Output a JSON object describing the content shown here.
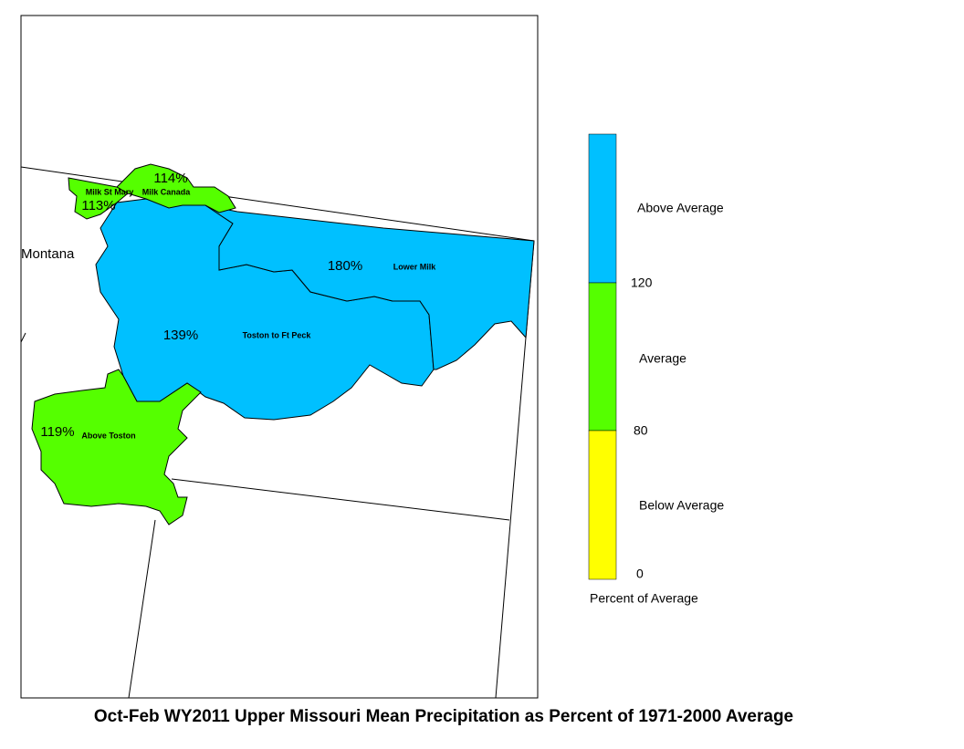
{
  "title": "Oct-Feb WY2011 Upper Missouri Mean Precipitation as Percent of 1971-2000 Average",
  "map": {
    "state_label": "Montana",
    "regions": [
      {
        "name": "Toston to Ft Peck",
        "percent": "139%",
        "color": "#00c0ff"
      },
      {
        "name": "Lower Milk",
        "percent": "180%",
        "color": "#00c0ff"
      },
      {
        "name": "Milk Canada",
        "percent": "114%",
        "color": "#55ff00"
      },
      {
        "name": "Milk St Mary",
        "percent": "113%",
        "color": "#55ff00"
      },
      {
        "name": "Above Toston",
        "percent": "119%",
        "color": "#55ff00"
      }
    ]
  },
  "legend": {
    "title": "Percent of Average",
    "classes": [
      {
        "label": "Above Average",
        "color": "#00c0ff"
      },
      {
        "label": "Average",
        "color": "#55ff00"
      },
      {
        "label": "Below Average",
        "color": "#ffff00"
      }
    ],
    "breaks": [
      120,
      80,
      0
    ]
  }
}
